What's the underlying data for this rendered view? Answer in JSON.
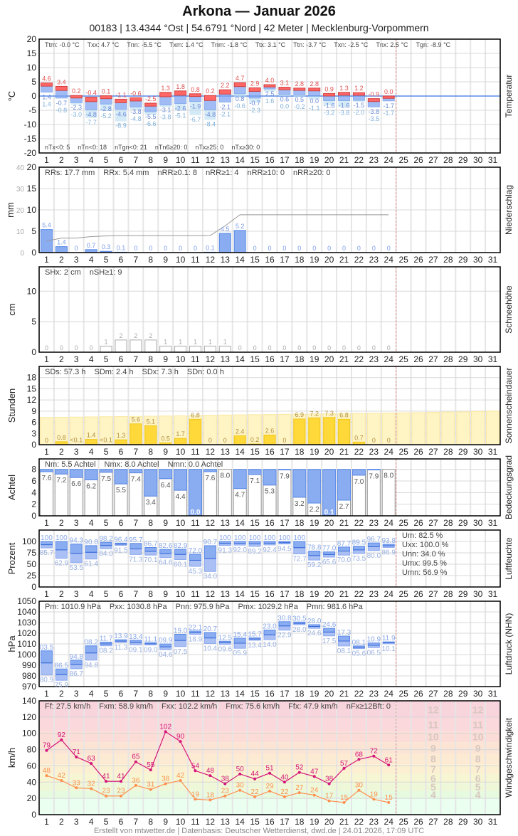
{
  "header": {
    "title": "Arkona  —  Januar 2026",
    "subtitle": "00183  |  13.4344 °Ost  |  54.6791 °Nord  |  42 Meter  |  Mecklenburg-Vorpommern"
  },
  "footer": "Erstellt von mtwetter.de | Datenbasis: Deutscher Wetterdienst, dwd.de | 24.01.2026, 17:09 UTC",
  "colors": {
    "tx": "#ff6666",
    "tn": "#7aa0f0",
    "tgn": "#b8dcf0",
    "precip": "#8aacf0",
    "sun": "#ffd83a",
    "sun_possible": "#fff4c4",
    "cloud": "#8aacf0",
    "gust": "#d4157a",
    "mean_wind": "#ff9050",
    "today_line": "#e89090"
  },
  "chart_data": [
    {
      "type": "bar",
      "panel": "temperature",
      "ylabel": "°C",
      "side_label": "Temperatur",
      "ylim": [
        -20,
        20
      ],
      "yticks": [
        -20,
        -15,
        -10,
        -5,
        0,
        5,
        10,
        15,
        20
      ],
      "x": [
        1,
        2,
        3,
        4,
        5,
        6,
        7,
        8,
        9,
        10,
        11,
        12,
        13,
        14,
        15,
        16,
        17,
        18,
        19,
        20,
        21,
        22,
        23,
        24,
        25,
        26,
        27,
        28,
        29,
        30,
        31
      ],
      "stats": [
        "Ttm: -0.0 °C",
        "Txx: 4.7 °C",
        "Tnn: -5.5 °C",
        "Txm: 1.4 °C",
        "Tnm: -1.8 °C",
        "Ttx: 3.1 °C",
        "Ttn: -3.7 °C",
        "Txn: -2.5 °C",
        "Tnx: 2.5 °C",
        "Tgn: -8.9 °C"
      ],
      "stats2": [
        "nTx<0: 5",
        "nTn<0: 18",
        "nTgn<0: 21",
        "nTn6≥20: 0",
        "nTx≥25: 0",
        "nTx≥30: 0"
      ],
      "tx": [
        4.6,
        3.4,
        0.2,
        -0.4,
        0.1,
        -1.1,
        -0.6,
        -2.5,
        1.3,
        1.8,
        0.8,
        0.2,
        2.2,
        4.7,
        2.9,
        4.0,
        3.1,
        2.8,
        2.8,
        0.9,
        1.3,
        1.2,
        -0.9,
        0.0
      ],
      "tn": [
        1.4,
        -0.7,
        -2.3,
        -4.8,
        -2.8,
        -4.6,
        -3.8,
        -5.5,
        -3.1,
        -2.6,
        -1.9,
        -4.8,
        -2.1,
        0.8,
        -0.7,
        2.5,
        0.6,
        0.5,
        0.0,
        -1.6,
        -1.6,
        -1.5,
        -3.8,
        -1.7
      ],
      "tgn": [
        1.4,
        -0.8,
        -3.0,
        -7.7,
        -5.2,
        -8.9,
        -4.8,
        -6.6,
        -3.8,
        -5.1,
        -6.7,
        -8.4,
        -2.1,
        -0.6,
        -2.3,
        1.6,
        0.0,
        -0.2,
        -1.1,
        -3.2,
        -3.8,
        -2.0,
        -3.5,
        -1.7
      ]
    },
    {
      "type": "bar",
      "panel": "precipitation",
      "ylabel": "mm",
      "side_label": "Niederschlag",
      "ylim": [
        0,
        20
      ],
      "yticks": [
        0,
        5,
        10,
        15,
        20
      ],
      "y2lim": [
        0,
        40
      ],
      "y2ticks": [
        0,
        10,
        20,
        30,
        40
      ],
      "stats": [
        "RRs: 17.7 mm",
        "RRx: 5.4 mm",
        "nRR≥0.1: 8",
        "nRR≥1: 4",
        "nRR≥10: 0",
        "nRR≥20: 0"
      ],
      "values": [
        5.4,
        1.4,
        0,
        0.7,
        0.3,
        0.1,
        0,
        0,
        0,
        0,
        0,
        0.1,
        4.5,
        5.2,
        0,
        0,
        0,
        0,
        0,
        0,
        0,
        0,
        0,
        0
      ]
    },
    {
      "type": "bar",
      "panel": "snow",
      "ylabel": "cm",
      "side_label": "Schneehöhe",
      "ylim": [
        0,
        14
      ],
      "yticks": [
        0,
        5,
        10
      ],
      "stats": [
        "SHx: 2 cm",
        "nSH≥1: 9"
      ],
      "values": [
        0,
        0,
        0,
        0,
        1,
        2,
        2,
        2,
        1,
        1,
        1,
        1,
        1,
        0,
        0,
        0,
        0,
        0,
        0,
        0,
        0,
        0,
        0,
        0
      ]
    },
    {
      "type": "bar",
      "panel": "sunshine",
      "ylabel": "Stunden",
      "side_label": "Sonnenscheindauer",
      "ylim": [
        0,
        21
      ],
      "yticks": [
        0,
        3,
        6,
        9,
        12,
        15,
        18
      ],
      "stats": [
        "SDs: 57.3 h",
        "SDm: 2.4 h",
        "SDx: 7.3 h",
        "SDn: 0.0 h"
      ],
      "values": [
        0,
        0.8,
        0.05,
        1.4,
        0.05,
        1.3,
        5.6,
        5.1,
        0.5,
        1.7,
        6.8,
        0,
        0,
        2.4,
        0.2,
        2.6,
        0,
        6.9,
        7.2,
        7.3,
        6.8,
        0.7,
        0,
        0
      ],
      "labels": [
        "0",
        "0.8",
        "<0.1",
        "1.4",
        "<0.1",
        "1.3",
        "5.6",
        "5.1",
        "0.5",
        "1.7",
        "6.8",
        "0",
        "0",
        "2.4",
        "0.2",
        "2.6",
        "0",
        "6.9",
        "7.2",
        "7.3",
        "6.8",
        "0.7",
        "0",
        "0"
      ],
      "possible": [
        7.3,
        7.35,
        7.4,
        7.45,
        7.5,
        7.55,
        7.6,
        7.65,
        7.7,
        7.75,
        7.85,
        7.9,
        7.95,
        8.0,
        8.05,
        8.1,
        8.15,
        8.2,
        8.25,
        8.3,
        8.35,
        8.4,
        8.45,
        8.5,
        8.55,
        8.6,
        8.7,
        8.75,
        8.8,
        8.9,
        9.0
      ]
    },
    {
      "type": "bar",
      "panel": "cloud",
      "ylabel": "Achtel",
      "side_label": "Bedeckungsgrad",
      "ylim": [
        0,
        9.8
      ],
      "yticks": [
        0,
        2,
        4,
        6,
        8
      ],
      "stats": [
        "Nm: 5.5 Achtel",
        "Nmx: 8.0 Achtel",
        "Nmn: 0.0 Achtel"
      ],
      "values": [
        7.6,
        7.2,
        6.6,
        6.2,
        7.5,
        5.5,
        7.4,
        3.4,
        6.4,
        4.4,
        0.0,
        7.6,
        8.0,
        4.7,
        7.1,
        5.3,
        7.9,
        3.2,
        2.2,
        0.1,
        2.7,
        7.0,
        7.9,
        8.0
      ]
    },
    {
      "type": "bar",
      "panel": "humidity",
      "ylabel": "Prozent",
      "side_label": "Luftfeuchte",
      "ylim": [
        0,
        125
      ],
      "yticks": [
        0,
        25,
        50,
        75,
        100
      ],
      "stats": [
        "Um: 82.5 %",
        "Uxx: 100.0 %",
        "Unn: 34.0 %",
        "Umx: 99.5 %",
        "Umn: 56.9 %"
      ],
      "max": [
        100,
        100,
        94.3,
        90.8,
        98.2,
        96.4,
        95.7,
        86.7,
        82.6,
        82.9,
        72.0,
        90.7,
        100,
        100,
        100,
        100,
        100,
        100,
        78.8,
        77.0,
        87.7,
        89.5,
        96.7,
        93.8
      ],
      "min": [
        85.7,
        62.9,
        53.5,
        61.4,
        84.0,
        91.5,
        71.3,
        70.1,
        64.6,
        60.1,
        45.3,
        34.0,
        91.3,
        92.0,
        89.2,
        92.4,
        94.5,
        72.7,
        59.2,
        65.6,
        70.0,
        73.5,
        80.0,
        86.9
      ]
    },
    {
      "type": "bar",
      "panel": "pressure",
      "ylabel": "hPa",
      "side_label": "Luftdruck (NHN)",
      "ylim": [
        970,
        1050
      ],
      "yticks": [
        970,
        980,
        990,
        1000,
        1010,
        1020,
        1030,
        1040,
        1050
      ],
      "stats": [
        "Pm: 1010.9 hPa",
        "Pxx: 1030.8 hPa",
        "Pnn: 975.9 hPa",
        "Pmx: 1029.2 hPa",
        "Pmn: 981.6 hPa"
      ],
      "max": [
        1003.5,
        986.5,
        994.8,
        1008.2,
        1011.7,
        1013.9,
        1013.4,
        1011.1,
        1009.9,
        1019.0,
        1022.1,
        1020.7,
        1012.5,
        1015.4,
        1015.7,
        1023.0,
        1030.8,
        1030.5,
        1028.0,
        1024.6,
        1017.3,
        1008.1,
        1010.9,
        1011.9
      ],
      "min": [
        980.9,
        975.9,
        986.7,
        994.8,
        1008.2,
        1011.3,
        1009.1,
        1009.0,
        1004.6,
        1007.5,
        1018.9,
        1010.4,
        1009.6,
        1005.9,
        1013.4,
        1014.0,
        1022.9,
        1028.0,
        1024.6,
        1017.5,
        1008.1,
        1005.6,
        1006.5,
        1010.1
      ]
    },
    {
      "type": "line",
      "panel": "wind",
      "ylabel": "km/h",
      "side_label": "Windgeschwindigkeit",
      "ylim": [
        0,
        140
      ],
      "yticks": [
        0,
        20,
        40,
        60,
        80,
        100,
        120,
        140
      ],
      "stats": [
        "Ff: 27.5 km/h",
        "Fxm: 58.9 km/h",
        "Fxx: 102.2 km/h",
        "Fmx: 75.6 km/h",
        "Ffx: 47.9 km/h",
        "nFx≥12Bft: 0"
      ],
      "beaufort": [
        {
          "bft": "4",
          "from": 20
        },
        {
          "bft": "5",
          "from": 29
        },
        {
          "bft": "6",
          "from": 39
        },
        {
          "bft": "7",
          "from": 50
        },
        {
          "bft": "8",
          "from": 62
        },
        {
          "bft": "9",
          "from": 75
        },
        {
          "bft": "10",
          "from": 89
        },
        {
          "bft": "11",
          "from": 103
        },
        {
          "bft": "12",
          "from": 118
        }
      ],
      "series": [
        {
          "key": "gust",
          "values": [
            79,
            92,
            71,
            63,
            41,
            41,
            65,
            55,
            102,
            90,
            54,
            48,
            38,
            50,
            44,
            51,
            40,
            52,
            47,
            38,
            57,
            68,
            72,
            61
          ]
        },
        {
          "key": "mean",
          "values": [
            48,
            42,
            33,
            32,
            23,
            23,
            36,
            31,
            38,
            42,
            19,
            18,
            23,
            30,
            22,
            29,
            22,
            27,
            24,
            17,
            15,
            30,
            19,
            15
          ]
        }
      ]
    }
  ]
}
